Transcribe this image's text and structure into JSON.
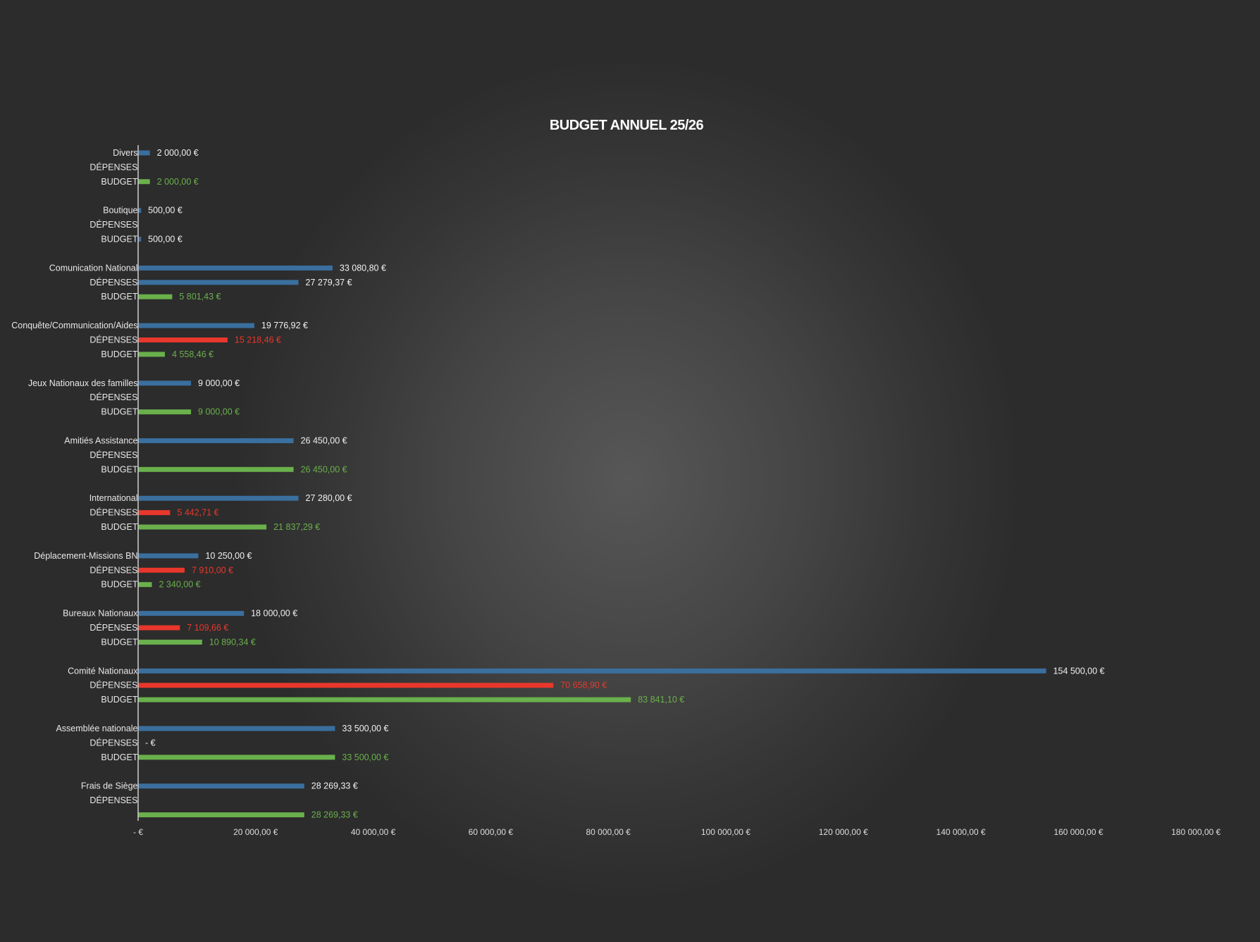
{
  "chart_data": {
    "type": "bar",
    "orientation": "horizontal",
    "title": "BUDGET ANNUEL 25/26",
    "xlim": [
      0,
      180000
    ],
    "x_ticks": [
      0,
      20000,
      40000,
      60000,
      80000,
      100000,
      120000,
      140000,
      160000,
      180000
    ],
    "x_tick_labels": [
      "-   €",
      "20 000,00 €",
      "40 000,00 €",
      "60 000,00 €",
      "80 000,00 €",
      "100 000,00 €",
      "120 000,00 €",
      "140 000,00 €",
      "160 000,00 €",
      "180 000,00 €"
    ],
    "grid": false,
    "colors": {
      "budget_total": "#3a6f9e",
      "depenses": "#e8372c",
      "budget_restant": "#6ab04c",
      "background": "#3a3a3a"
    },
    "groups": [
      {
        "category": "Divers",
        "rows": [
          {
            "label": "Divers",
            "series": "total",
            "value": 2000,
            "display": "2 000,00 €"
          },
          {
            "label": "DÉPENSES",
            "series": "depenses",
            "value": null,
            "display": ""
          },
          {
            "label": "BUDGET",
            "series": "restant",
            "value": 2000,
            "display": "2 000,00 €"
          }
        ]
      },
      {
        "category": "Boutique",
        "rows": [
          {
            "label": "Boutique",
            "series": "total",
            "value": 500,
            "display": "500,00 €"
          },
          {
            "label": "DÉPENSES",
            "series": "depenses",
            "value": null,
            "display": ""
          },
          {
            "label": "BUDGET",
            "series": "total",
            "value": 500,
            "display": "500,00 €"
          }
        ]
      },
      {
        "category": "Comunication National",
        "rows": [
          {
            "label": "Comunication National",
            "series": "total",
            "value": 33080.8,
            "display": "33 080,80 €"
          },
          {
            "label": "DÉPENSES",
            "series": "total",
            "value": 27279.37,
            "display": "27 279,37 €"
          },
          {
            "label": "BUDGET",
            "series": "restant",
            "value": 5801.43,
            "display": "5 801,43 €"
          }
        ]
      },
      {
        "category": "Conquête/Communication/Aides",
        "rows": [
          {
            "label": "Conquête/Communication/Aides",
            "series": "total",
            "value": 19776.92,
            "display": "19 776,92 €"
          },
          {
            "label": "DÉPENSES",
            "series": "depenses",
            "value": 15218.46,
            "display": "15 218,46 €"
          },
          {
            "label": "BUDGET",
            "series": "restant",
            "value": 4558.46,
            "display": "4 558,46 €"
          }
        ]
      },
      {
        "category": "Jeux Nationaux des familles",
        "rows": [
          {
            "label": "Jeux Nationaux des familles",
            "series": "total",
            "value": 9000,
            "display": "9 000,00 €"
          },
          {
            "label": "DÉPENSES",
            "series": "depenses",
            "value": null,
            "display": ""
          },
          {
            "label": "BUDGET",
            "series": "restant",
            "value": 9000,
            "display": "9 000,00 €"
          }
        ]
      },
      {
        "category": "Amitiés Assistance",
        "rows": [
          {
            "label": "Amitiés Assistance",
            "series": "total",
            "value": 26450,
            "display": "26 450,00 €"
          },
          {
            "label": "DÉPENSES",
            "series": "depenses",
            "value": null,
            "display": ""
          },
          {
            "label": "BUDGET",
            "series": "restant",
            "value": 26450,
            "display": "26 450,00 €"
          }
        ]
      },
      {
        "category": "International",
        "rows": [
          {
            "label": "International",
            "series": "total",
            "value": 27280,
            "display": "27 280,00 €"
          },
          {
            "label": "DÉPENSES",
            "series": "depenses",
            "value": 5442.71,
            "display": "5 442,71 €"
          },
          {
            "label": "BUDGET",
            "series": "restant",
            "value": 21837.29,
            "display": "21 837,29 €"
          }
        ]
      },
      {
        "category": "Déplacement-Missions BN",
        "rows": [
          {
            "label": "Déplacement-Missions BN",
            "series": "total",
            "value": 10250,
            "display": "10 250,00 €"
          },
          {
            "label": "DÉPENSES",
            "series": "depenses",
            "value": 7910,
            "display": "7 910,00 €"
          },
          {
            "label": "BUDGET",
            "series": "restant",
            "value": 2340,
            "display": "2 340,00 €"
          }
        ]
      },
      {
        "category": "Bureaux Nationaux",
        "rows": [
          {
            "label": "Bureaux Nationaux",
            "series": "total",
            "value": 18000,
            "display": "18 000,00 €"
          },
          {
            "label": "DÉPENSES",
            "series": "depenses",
            "value": 7109.66,
            "display": "7 109,66 €"
          },
          {
            "label": "BUDGET",
            "series": "restant",
            "value": 10890.34,
            "display": "10 890,34 €"
          }
        ]
      },
      {
        "category": "Comité Nationaux",
        "rows": [
          {
            "label": "Comité Nationaux",
            "series": "total",
            "value": 154500,
            "display": "154 500,00 €"
          },
          {
            "label": "DÉPENSES",
            "series": "depenses",
            "value": 70658.9,
            "display": "70 658,90 €"
          },
          {
            "label": "BUDGET",
            "series": "restant",
            "value": 83841.1,
            "display": "83 841,10 €"
          }
        ]
      },
      {
        "category": "Assemblée nationale",
        "rows": [
          {
            "label": "Assemblée nationale",
            "series": "total",
            "value": 33500,
            "display": "33 500,00 €"
          },
          {
            "label": "DÉPENSES",
            "series": "total",
            "value": 0,
            "display": "-   €"
          },
          {
            "label": "BUDGET",
            "series": "restant",
            "value": 33500,
            "display": "33 500,00 €"
          }
        ]
      },
      {
        "category": "Frais de Siège",
        "rows": [
          {
            "label": "Frais de Siège",
            "series": "total",
            "value": 28269.33,
            "display": "28 269,33 €"
          },
          {
            "label": "DÉPENSES",
            "series": "depenses",
            "value": null,
            "display": ""
          },
          {
            "label": "",
            "series": "restant",
            "value": 28269.33,
            "display": "28 269,33 €"
          }
        ]
      }
    ]
  }
}
